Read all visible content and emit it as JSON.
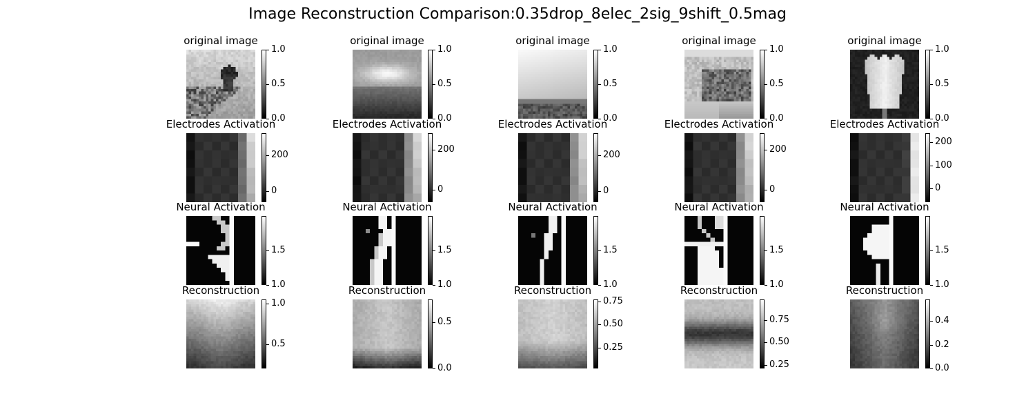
{
  "figure": {
    "title": "Image Reconstruction Comparison:0.35drop_8elec_2sig_9shift_0.5mag"
  },
  "chart_data": {
    "type": "heatmap",
    "colormap": "gray",
    "rows": [
      {
        "title": "original image",
        "panels": [
          {
            "image": "landscape with dark tree on a hill",
            "colorbar_ticks": [
              "0.0",
              "0.5",
              "1.0"
            ],
            "range": [
              0,
              1
            ]
          },
          {
            "image": "sunset sky over dark horizon",
            "colorbar_ticks": [
              "0.0",
              "0.5",
              "1.0"
            ],
            "range": [
              0,
              1
            ]
          },
          {
            "image": "bright sky over dark treeline",
            "colorbar_ticks": [
              "0.0",
              "0.5",
              "1.0"
            ],
            "range": [
              0,
              1
            ]
          },
          {
            "image": "old tram/train car on a street",
            "colorbar_ticks": [
              "0.0",
              "0.5",
              "1.0"
            ],
            "range": [
              0,
              1
            ]
          },
          {
            "image": "white tulip flower on dark background",
            "colorbar_ticks": [
              "0.0",
              "0.5",
              "1.0"
            ],
            "range": [
              0,
              1
            ]
          }
        ]
      },
      {
        "title": "Electrodes Activation",
        "panels": [
          {
            "colorbar_ticks": [
              "0",
              "200"
            ],
            "range": [
              -60,
              320
            ]
          },
          {
            "colorbar_ticks": [
              "0",
              "200"
            ],
            "range": [
              -60,
              280
            ]
          },
          {
            "colorbar_ticks": [
              "0",
              "200"
            ],
            "range": [
              -60,
              320
            ]
          },
          {
            "colorbar_ticks": [
              "0",
              "200"
            ],
            "range": [
              -60,
              280
            ]
          },
          {
            "colorbar_ticks": [
              "0",
              "100",
              "200"
            ],
            "range": [
              -60,
              240
            ]
          }
        ]
      },
      {
        "title": "Neural Activation",
        "panels": [
          {
            "colorbar_ticks": [
              "1.0",
              "1.5"
            ],
            "range": [
              1.0,
              2.0
            ]
          },
          {
            "colorbar_ticks": [
              "1.0",
              "1.5"
            ],
            "range": [
              1.0,
              2.0
            ]
          },
          {
            "colorbar_ticks": [
              "1.0",
              "1.5"
            ],
            "range": [
              1.0,
              2.0
            ]
          },
          {
            "colorbar_ticks": [
              "1.0",
              "1.5"
            ],
            "range": [
              1.0,
              2.0
            ]
          },
          {
            "colorbar_ticks": [
              "1.0",
              "1.5"
            ],
            "range": [
              1.0,
              2.0
            ]
          }
        ]
      },
      {
        "title": "Reconstruction",
        "panels": [
          {
            "colorbar_ticks": [
              "0.5",
              "1.0"
            ],
            "range": [
              0.2,
              1.05
            ]
          },
          {
            "colorbar_ticks": [
              "0.0",
              "0.5"
            ],
            "range": [
              0.0,
              0.75
            ]
          },
          {
            "colorbar_ticks": [
              "0.25",
              "0.50",
              "0.75"
            ],
            "range": [
              0.03,
              0.77
            ]
          },
          {
            "colorbar_ticks": [
              "0.25",
              "0.50",
              "0.75"
            ],
            "range": [
              0.21,
              0.98
            ]
          },
          {
            "colorbar_ticks": [
              "0.0",
              "0.2",
              "0.4"
            ],
            "range": [
              0.0,
              0.58
            ]
          }
        ]
      }
    ]
  }
}
